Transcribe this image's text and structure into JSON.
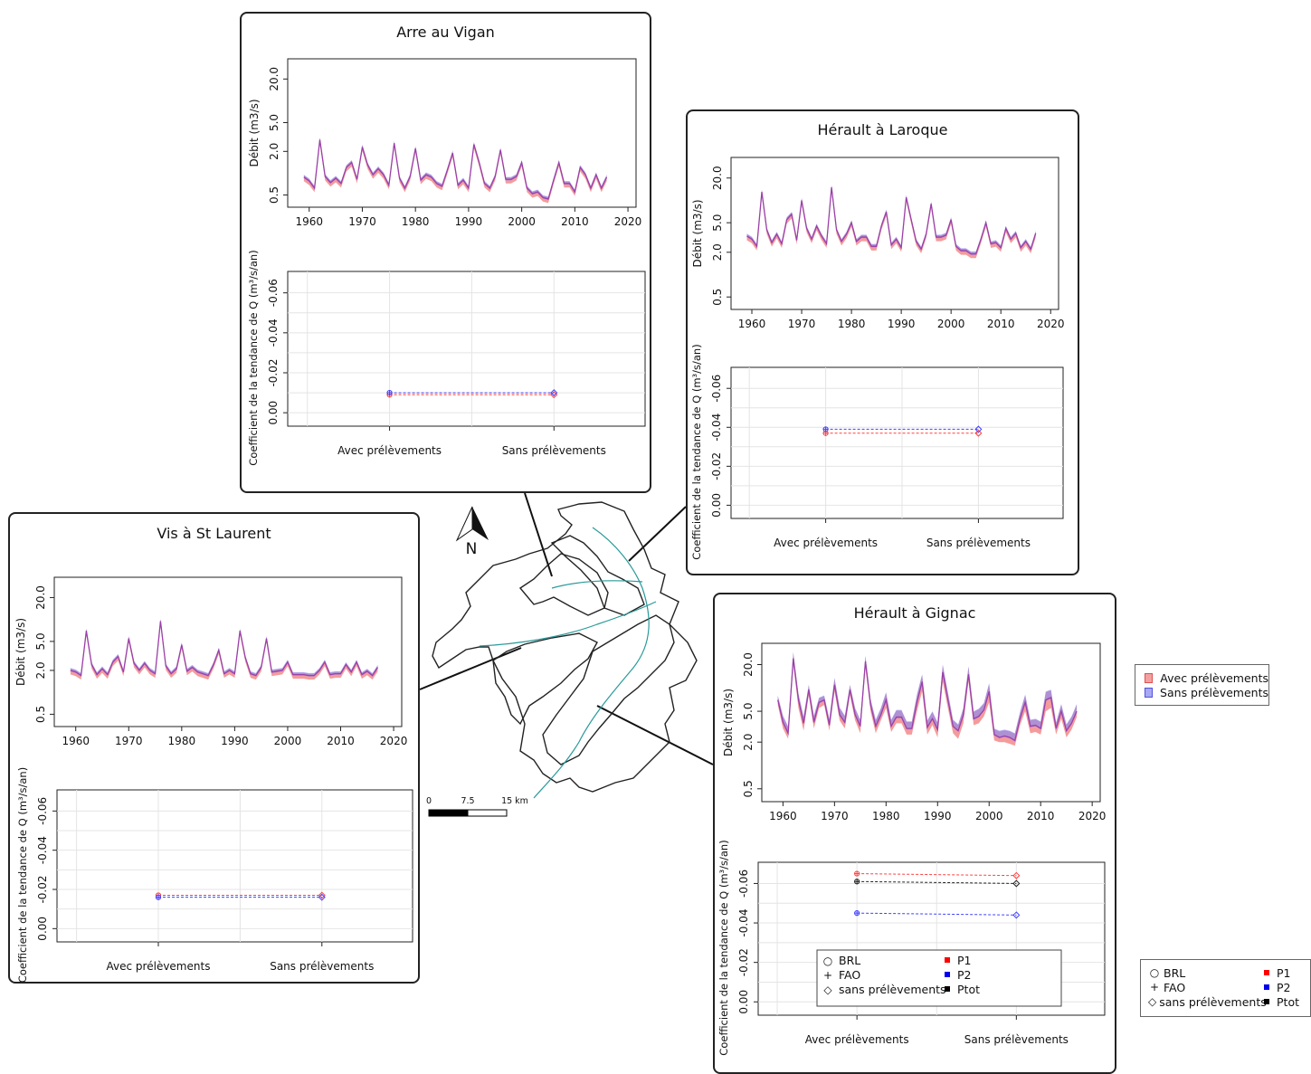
{
  "panels": [
    {
      "id": "arre",
      "title": "Arre au Vigan",
      "series": [
        0.88,
        0.78,
        0.62,
        2.9,
        0.9,
        0.74,
        0.85,
        0.72,
        1.2,
        1.4,
        0.82,
        2.3,
        1.3,
        0.95,
        1.15,
        0.95,
        0.68,
        2.6,
        0.85,
        0.62,
        0.9,
        2.2,
        0.8,
        0.95,
        0.88,
        0.72,
        0.66,
        1.1,
        1.9,
        0.68,
        0.8,
        0.62,
        2.5,
        1.4,
        0.72,
        0.62,
        0.9,
        2.1,
        0.82,
        0.82,
        0.9,
        1.4,
        0.62,
        0.52,
        0.55,
        0.46,
        0.44,
        0.8,
        1.4,
        0.72,
        0.72,
        0.55,
        1.2,
        0.95,
        0.62,
        0.95,
        0.62,
        0.88
      ],
      "trend": {
        "avec_red": -0.009,
        "avec_blue": -0.01,
        "sans_red": -0.009,
        "sans_blue": -0.01
      }
    },
    {
      "id": "laroque",
      "title": "Hérault à Laroque",
      "series": [
        3.3,
        3.0,
        2.4,
        13.0,
        4.0,
        2.7,
        3.5,
        2.6,
        5.5,
        6.5,
        2.9,
        10.0,
        4.2,
        3.0,
        4.5,
        3.3,
        2.6,
        15.0,
        4.0,
        2.8,
        3.5,
        5.0,
        2.8,
        3.2,
        3.2,
        2.4,
        2.4,
        4.5,
        7.0,
        2.5,
        3.0,
        2.3,
        11.0,
        5.5,
        2.8,
        2.2,
        3.5,
        9.0,
        3.2,
        3.2,
        3.4,
        5.5,
        2.4,
        2.1,
        2.1,
        1.9,
        1.9,
        3.0,
        5.0,
        2.6,
        2.7,
        2.3,
        4.2,
        3.0,
        3.6,
        2.3,
        2.8,
        2.2,
        3.6
      ],
      "trend": {
        "avec_red": -0.037,
        "avec_blue": -0.039,
        "sans_red": -0.037,
        "sans_blue": -0.039
      }
    },
    {
      "id": "vis",
      "title": "Vis à St Laurent",
      "series": [
        2.0,
        1.9,
        1.7,
        7.0,
        2.4,
        1.75,
        2.1,
        1.75,
        2.6,
        3.1,
        1.9,
        5.5,
        2.5,
        2.0,
        2.5,
        2.0,
        1.8,
        9.5,
        2.3,
        1.8,
        2.1,
        4.5,
        1.95,
        2.2,
        1.9,
        1.8,
        1.7,
        2.4,
        3.8,
        1.8,
        2.0,
        1.8,
        7.0,
        3.0,
        1.8,
        1.7,
        2.2,
        5.5,
        1.9,
        1.95,
        2.0,
        2.6,
        1.75,
        1.75,
        1.75,
        1.7,
        1.7,
        2.0,
        2.6,
        1.75,
        1.8,
        1.8,
        2.4,
        1.9,
        2.6,
        1.75,
        1.95,
        1.7,
        2.2
      ],
      "trend": {
        "avec_red": -0.017,
        "avec_blue": -0.016,
        "sans_red": -0.017,
        "sans_blue": -0.016
      }
    },
    {
      "id": "gignac",
      "title": "Hérault à Gignac",
      "series": [
        7.0,
        3.6,
        2.6,
        24.0,
        7.0,
        3.5,
        9.5,
        3.6,
        6.5,
        7.0,
        3.3,
        11.0,
        4.5,
        3.6,
        9.5,
        4.5,
        3.2,
        22.0,
        6.0,
        3.2,
        4.5,
        7.0,
        3.2,
        4.2,
        4.2,
        3.0,
        3.0,
        6.5,
        12.0,
        3.1,
        4.0,
        2.9,
        16.0,
        7.0,
        3.2,
        2.8,
        4.5,
        15.0,
        4.0,
        4.3,
        5.2,
        9.0,
        2.5,
        2.3,
        2.4,
        2.3,
        2.1,
        4.0,
        6.5,
        3.2,
        3.3,
        3.0,
        7.0,
        7.5,
        3.0,
        5.0,
        2.8,
        3.5,
        5.0
      ],
      "band_lo": [
        6.0,
        3.0,
        2.2,
        20.0,
        5.5,
        2.8,
        8.0,
        3.0,
        5.5,
        6.0,
        2.8,
        9.0,
        3.8,
        3.0,
        8.0,
        3.8,
        2.6,
        18.0,
        5.0,
        2.6,
        3.8,
        5.5,
        2.7,
        3.5,
        3.5,
        2.5,
        2.5,
        5.0,
        9.0,
        2.5,
        3.3,
        2.3,
        12.0,
        5.5,
        2.6,
        2.2,
        3.5,
        12.0,
        3.3,
        3.5,
        4.3,
        6.5,
        2.1,
        2.0,
        2.0,
        1.9,
        1.8,
        3.3,
        5.0,
        2.6,
        2.7,
        2.5,
        5.0,
        5.5,
        2.5,
        4.0,
        2.3,
        2.9,
        4.2
      ],
      "band_hi": [
        8.0,
        4.4,
        3.2,
        29.0,
        8.5,
        4.3,
        11.0,
        4.4,
        7.5,
        8.0,
        4.0,
        13.5,
        5.6,
        4.4,
        11.0,
        5.5,
        3.9,
        26.0,
        7.2,
        3.9,
        5.5,
        8.8,
        3.9,
        5.2,
        5.2,
        3.7,
        3.7,
        8.2,
        15.0,
        3.8,
        5.0,
        3.6,
        20.0,
        8.8,
        3.9,
        3.4,
        5.5,
        19.0,
        5.0,
        5.4,
        6.4,
        11.5,
        3.0,
        2.8,
        2.9,
        2.8,
        2.6,
        4.9,
        8.2,
        3.9,
        4.0,
        3.7,
        9.0,
        9.5,
        3.6,
        6.2,
        3.4,
        4.3,
        6.2
      ],
      "trend": {
        "avec_red": -0.065,
        "avec_black": -0.061,
        "avec_blue": -0.045,
        "sans_red": -0.064,
        "sans_black": -0.06,
        "sans_blue": -0.044
      }
    }
  ],
  "chart_data": [
    {
      "type": "line",
      "title": "Arre au Vigan",
      "x_start": 1959,
      "ylabel": "Débit (m3/s)",
      "yscale": "log",
      "yticks": [
        "0.5",
        "2.0",
        "5.0",
        "20.0"
      ],
      "xticks": [
        "1960",
        "1970",
        "1980",
        "1990",
        "2000",
        "2010",
        "2020"
      ]
    },
    {
      "type": "scatter",
      "title": "Arre au Vigan",
      "ylabel": "Coefficient de la tendance de Q (m³/s/an)",
      "categories": [
        "Avec prélèvements",
        "Sans prélèvements"
      ],
      "ylim": [
        0.005,
        -0.07
      ],
      "yticks": [
        "0.00",
        "-0.02",
        "-0.04",
        "-0.06"
      ]
    },
    {
      "type": "line",
      "title": "Hérault à Laroque",
      "ylabel": "Débit (m3/s)",
      "yscale": "log"
    },
    {
      "type": "scatter",
      "title": "Hérault à Laroque",
      "ylabel": "Coefficient de la tendance de Q (m³/s/an)",
      "categories": [
        "Avec prélèvements",
        "Sans prélèvements"
      ]
    },
    {
      "type": "line",
      "title": "Vis à St Laurent",
      "ylabel": "Débit (m3/s)",
      "yscale": "log"
    },
    {
      "type": "scatter",
      "title": "Vis à St Laurent",
      "ylabel": "Coefficient de la tendance de Q (m³/s/an)",
      "categories": [
        "Avec prélèvements",
        "Sans prélèvements"
      ]
    },
    {
      "type": "line",
      "title": "Hérault à Gignac",
      "ylabel": "Débit (m3/s)",
      "yscale": "log"
    },
    {
      "type": "scatter",
      "title": "Hérault à Gignac",
      "ylabel": "Coefficient de la tendance de Q (m³/s/an)",
      "categories": [
        "Avec prélèvements",
        "Sans prélèvements"
      ]
    }
  ],
  "labels": {
    "ylabel_flow": "Débit (m3/s)",
    "ylabel_trend": "Coefficient de la tendance de Q (m³/s/an)",
    "cat_avec": "Avec prélèvements",
    "cat_sans": "Sans prélèvements",
    "north": "N",
    "scale_0": "0",
    "scale_mid": "7.5",
    "scale_end": "15 km"
  },
  "legend_series": {
    "avec": "Avec prélèvements",
    "sans": "Sans prélèvements",
    "avec_color": "#f08080",
    "sans_color": "#8080f0"
  },
  "legend_symbols": {
    "brl": "BRL",
    "fao": "FAO",
    "sans": "sans prélèvements",
    "p1": "P1",
    "p2": "P2",
    "ptot": "Ptot",
    "p1_color": "#ff0000",
    "p2_color": "#0000ee",
    "ptot_color": "#000000"
  },
  "colors": {
    "line": "#9a40a8",
    "band_red": "#f07a7a",
    "band_blue": "#8a8af0",
    "river": "#2a9a9a"
  }
}
